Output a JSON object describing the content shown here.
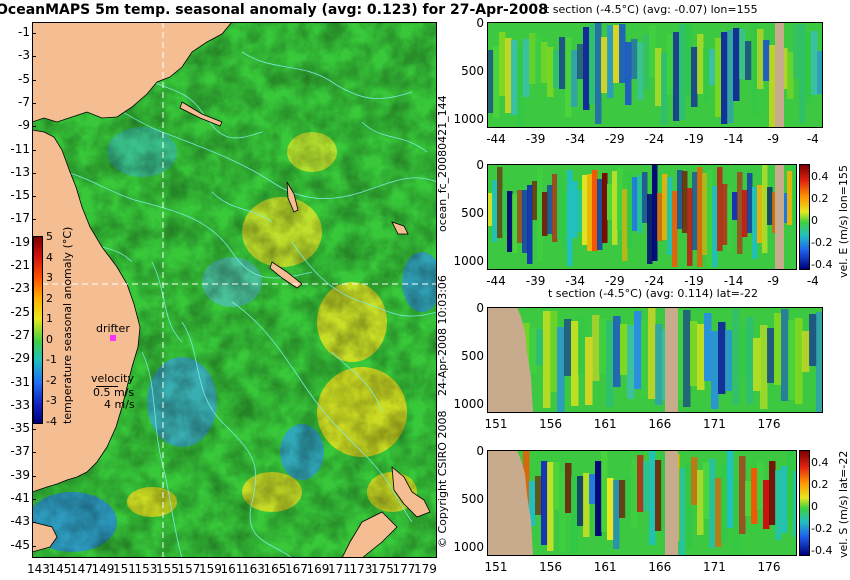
{
  "map": {
    "title": "OceanMAPS 5m temp. seasonal anomaly (avg: 0.123) for 27-Apr-2008",
    "lat_labels": [
      "-1",
      "-3",
      "-5",
      "-7",
      "-9",
      "-11",
      "-13",
      "-15",
      "-17",
      "-19",
      "-21",
      "-23",
      "-25",
      "-27",
      "-29",
      "-31",
      "-33",
      "-35",
      "-37",
      "-39",
      "-41",
      "-43",
      "-45"
    ],
    "lon_labels": [
      "143",
      "145",
      "147",
      "149",
      "151",
      "153",
      "155",
      "157",
      "159",
      "161",
      "163",
      "165",
      "167",
      "169",
      "171",
      "173",
      "175",
      "177",
      "179"
    ],
    "drifter_label": "drifter",
    "velocity_label": "velocity",
    "velocity_value_1": "0.5 m/s",
    "velocity_value_2": "4 m/s",
    "cbar_label": "temperature seasonal anomaly (°C)",
    "cbar_ticks": [
      "5",
      "4",
      "3",
      "2",
      "1",
      "0",
      "-1",
      "-2",
      "-3",
      "-4"
    ],
    "colors": {
      "land": "#f5bd92",
      "ocean": "#38c83a",
      "contour": "#7ff0ee",
      "warm": "#e8e520",
      "cool": "#2a8fe0"
    }
  },
  "panels": [
    {
      "title": "t section (-4.5°C) (avg: -0.07) lon=155",
      "y_ticks": [
        "0",
        "500",
        "1000"
      ],
      "x_ticks": [
        "-44",
        "-39",
        "-34",
        "-29",
        "-24",
        "-19",
        "-14",
        "-9",
        "-4"
      ]
    },
    {
      "title": "",
      "y_ticks": [
        "0",
        "500",
        "1000"
      ],
      "x_ticks": [
        "-44",
        "-39",
        "-34",
        "-29",
        "-24",
        "-19",
        "-14",
        "-9",
        "-4"
      ],
      "cbar_label": "vel. E (m/s) lon=155",
      "cbar_ticks": [
        "0.4",
        "0.2",
        "0",
        "-0.2",
        "-0.4"
      ]
    },
    {
      "title": "t section (-4.5°C) (avg: 0.114) lat=-22",
      "y_ticks": [
        "0",
        "500",
        "1000"
      ],
      "x_ticks": [
        "151",
        "156",
        "161",
        "166",
        "171",
        "176"
      ]
    },
    {
      "title": "",
      "y_ticks": [
        "0",
        "500",
        "1000"
      ],
      "x_ticks": [
        "151",
        "156",
        "161",
        "166",
        "171",
        "176"
      ],
      "cbar_label": "vel. S (m/s) lat=-22",
      "cbar_ticks": [
        "0.4",
        "0.2",
        "0",
        "-0.2",
        "-0.4"
      ]
    }
  ],
  "side_labels": {
    "run_id": "ocean_fc_20080421_144",
    "timestamp": "24-Apr-2008 10:03:06",
    "copyright": "© Copyright CSIRO 2008"
  }
}
